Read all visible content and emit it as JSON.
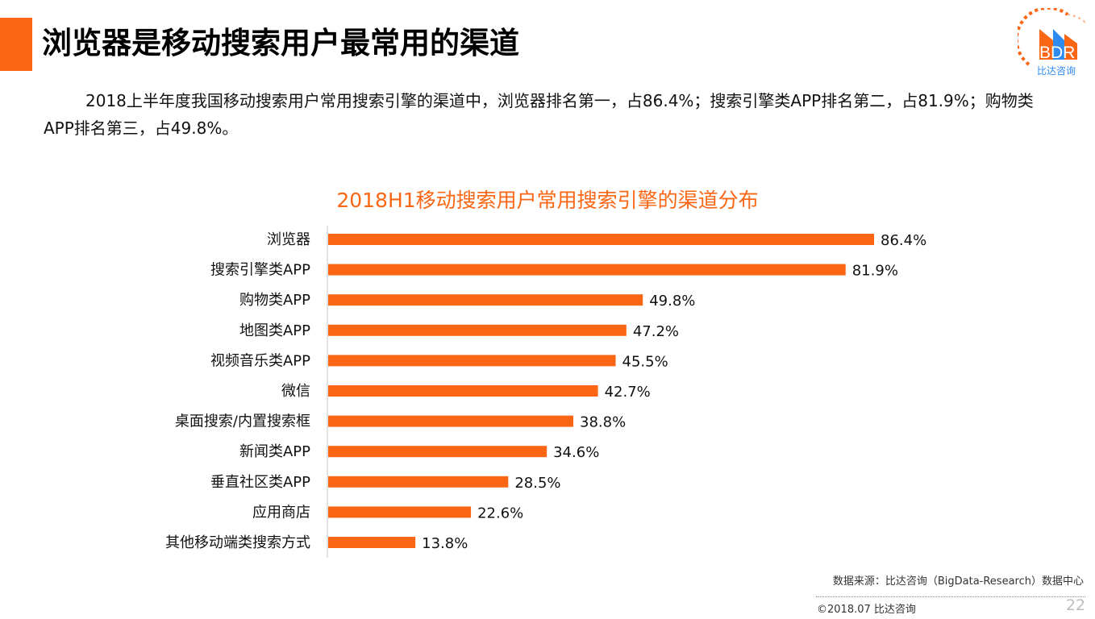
{
  "header": {
    "title": "浏览器是移动搜索用户最常用的渠道"
  },
  "logo": {
    "text": "BDR",
    "subtitle": "比达咨询",
    "colors": {
      "orange": "#FA6614",
      "blue": "#2E8BF0"
    }
  },
  "summary": {
    "text": "2018上半年度我国移动搜索用户常用搜索引擎的渠道中，浏览器排名第一，占86.4%；搜索引擎类APP排名第二，占81.9%；购物类APP排名第三，占49.8%。"
  },
  "colors": {
    "accent": "#FA6614",
    "bar": "#FA6614",
    "axis": "#D9D9D9"
  },
  "chart_data": {
    "type": "bar",
    "orientation": "horizontal",
    "title": "2018H1移动搜索用户常用搜索引擎的渠道分布",
    "xlabel": "",
    "ylabel": "",
    "unit": "%",
    "xlim": [
      0,
      86.4
    ],
    "grid": false,
    "legend": "none",
    "categories": [
      "浏览器",
      "搜索引擎类APP",
      "购物类APP",
      "地图类APP",
      "视频音乐类APP",
      "微信",
      "桌面搜索/内置搜索框",
      "新闻类APP",
      "垂直社区类APP",
      "应用商店",
      "其他移动端类搜索方式"
    ],
    "values": [
      86.4,
      81.9,
      49.8,
      47.2,
      45.5,
      42.7,
      38.8,
      34.6,
      28.5,
      22.6,
      13.8
    ],
    "data_labels": [
      "86.4%",
      "81.9%",
      "49.8%",
      "47.2%",
      "45.5%",
      "42.7%",
      "38.8%",
      "34.6%",
      "28.5%",
      "22.6%",
      "13.8%"
    ]
  },
  "footer": {
    "source": "数据来源：比达咨询（BigData-Research）数据中心",
    "copyright": "©2018.07  比达咨询",
    "page_number": "22"
  }
}
